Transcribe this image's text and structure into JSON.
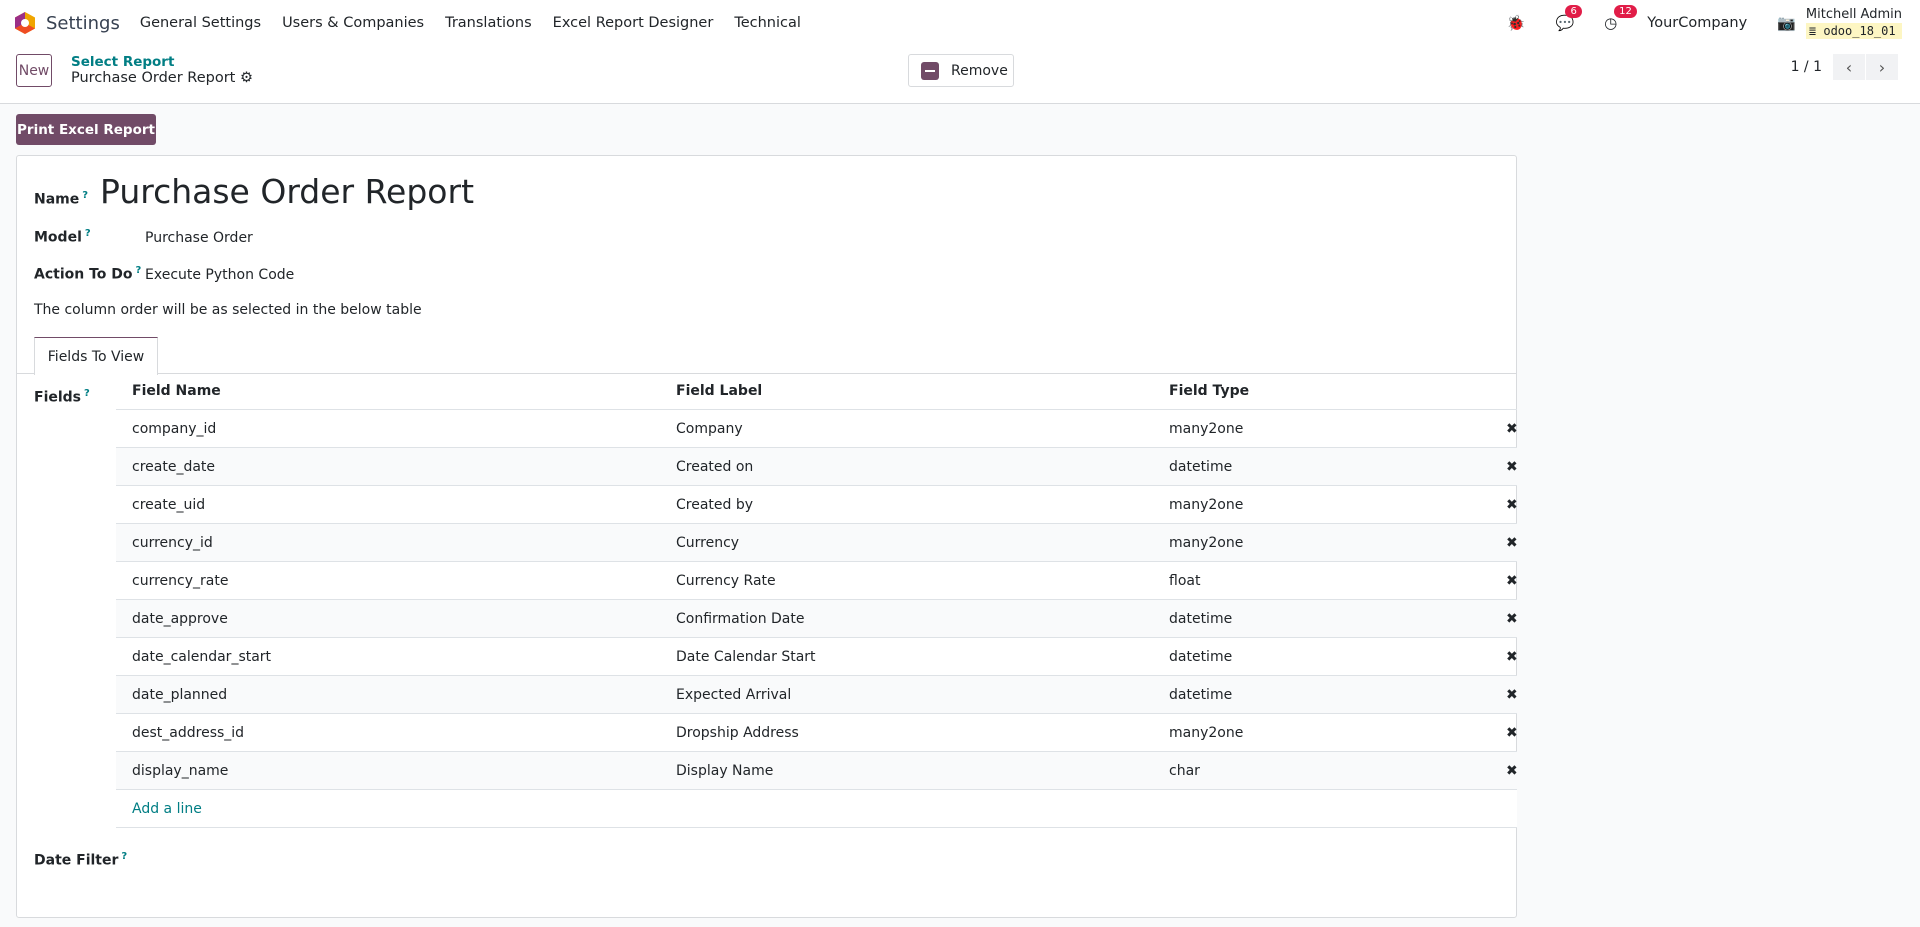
{
  "nav": {
    "app": "Settings",
    "menus": [
      "General Settings",
      "Users & Companies",
      "Translations",
      "Excel Report Designer",
      "Technical"
    ],
    "messages_count": "6",
    "activities_count": "12",
    "company": "YourCompany",
    "user": "Mitchell Admin",
    "database": "odoo_18_01"
  },
  "control": {
    "new_label": "New",
    "breadcrumb_parent": "Select Report",
    "breadcrumb_current": "Purchase Order Report",
    "remove_label": "Remove",
    "pager": "1 / 1"
  },
  "print_label": "Print Excel Report",
  "form": {
    "name_label": "Name",
    "name": "Purchase Order Report",
    "model_label": "Model",
    "model": "Purchase Order",
    "action_label": "Action To Do",
    "action": "Execute Python Code",
    "note": "The column order will be as selected in the below table",
    "tab": "Fields To View",
    "fields_label": "Fields",
    "date_filter_label": "Date Filter",
    "help": "?"
  },
  "table": {
    "headers": [
      "Field Name",
      "Field Label",
      "Field Type"
    ],
    "rows": [
      [
        "company_id",
        "Company",
        "many2one"
      ],
      [
        "create_date",
        "Created on",
        "datetime"
      ],
      [
        "create_uid",
        "Created by",
        "many2one"
      ],
      [
        "currency_id",
        "Currency",
        "many2one"
      ],
      [
        "currency_rate",
        "Currency Rate",
        "float"
      ],
      [
        "date_approve",
        "Confirmation Date",
        "datetime"
      ],
      [
        "date_calendar_start",
        "Date Calendar Start",
        "datetime"
      ],
      [
        "date_planned",
        "Expected Arrival",
        "datetime"
      ],
      [
        "dest_address_id",
        "Dropship Address",
        "many2one"
      ],
      [
        "display_name",
        "Display Name",
        "char"
      ]
    ],
    "add_line": "Add a line",
    "delete_icon": "✖"
  },
  "colors": {
    "primary": "#714b67",
    "link": "#017e84",
    "badge": "#e11d48"
  }
}
